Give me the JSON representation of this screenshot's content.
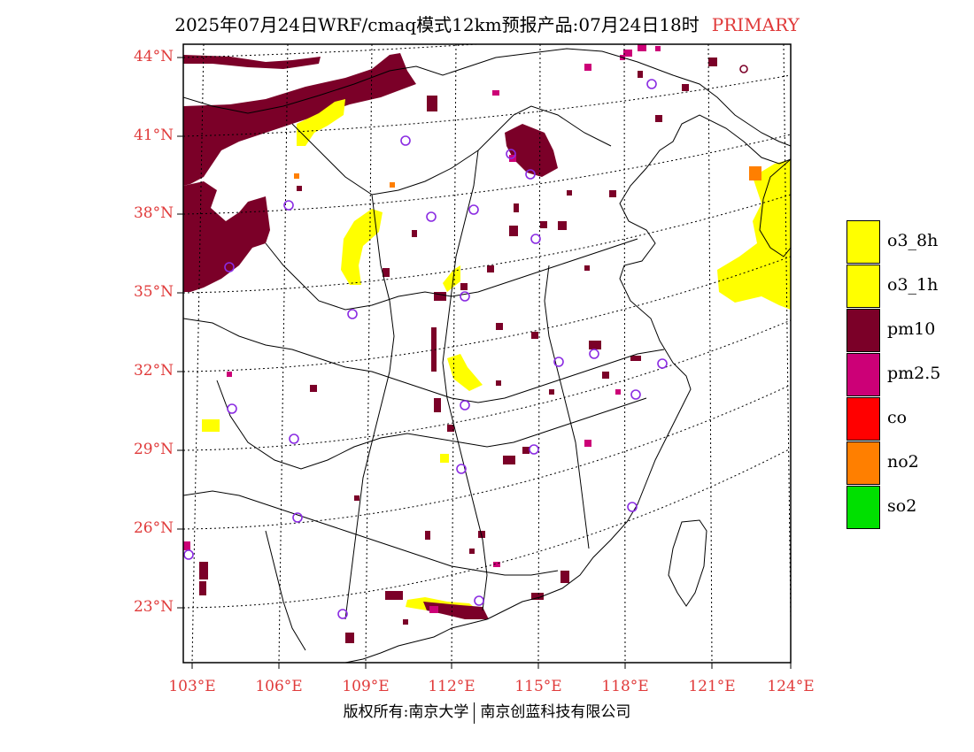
{
  "title": {
    "text": "2025年07月24日WRF/cmaq模式12km预报产品:07月24日18时",
    "tag": "PRIMARY"
  },
  "axes": {
    "lat_labels": [
      "44°N",
      "41°N",
      "38°N",
      "35°N",
      "32°N",
      "29°N",
      "26°N",
      "23°N"
    ],
    "lon_labels": [
      "103°E",
      "106°E",
      "109°E",
      "112°E",
      "115°E",
      "118°E",
      "121°E",
      "124°E"
    ]
  },
  "legend": [
    {
      "label": "o3_8h",
      "color": "#ffff00"
    },
    {
      "label": "o3_1h",
      "color": "#ffff00"
    },
    {
      "label": "pm10",
      "color": "#7b0028"
    },
    {
      "label": "pm2.5",
      "color": "#cc0077"
    },
    {
      "label": "co",
      "color": "#ff0000"
    },
    {
      "label": "no2",
      "color": "#ff7f00"
    },
    {
      "label": "so2",
      "color": "#00e000"
    }
  ],
  "footer": {
    "left": "版权所有:南京大学",
    "right": "南京创蓝科技有限公司"
  },
  "colors": {
    "label_red": "#e03a3a",
    "station_marker": "#8a2be2"
  }
}
